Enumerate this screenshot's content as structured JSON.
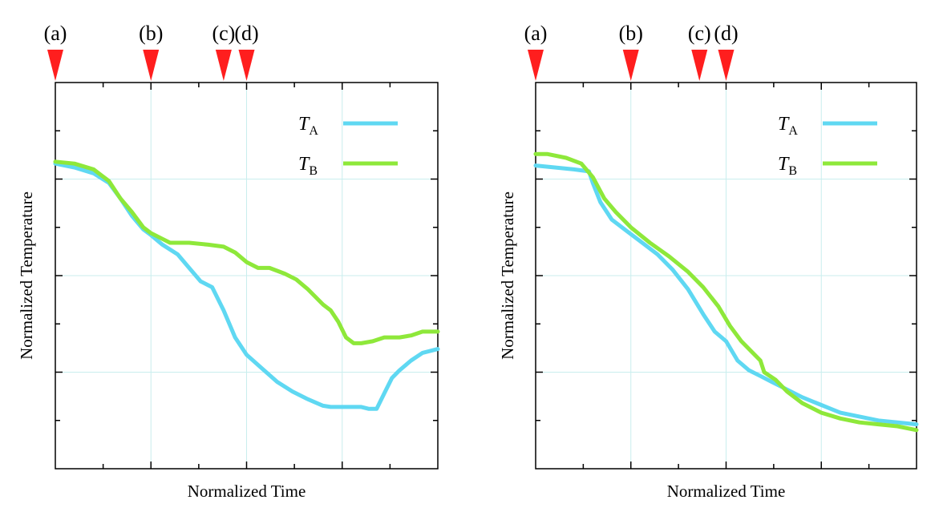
{
  "figure": {
    "panels": 2
  },
  "colors": {
    "series_A": "#5fd8f2",
    "series_B": "#8ee83a",
    "marker": "#ff1e1e",
    "grid": "#c9eeee",
    "axis": "#000000"
  },
  "chart_data": [
    {
      "type": "line",
      "title": "",
      "xlabel": "Normalized Time",
      "ylabel": "Normalized Temperature",
      "xlim": [
        0,
        1
      ],
      "ylim": [
        0,
        1
      ],
      "grid": true,
      "legend_placement": "top-right",
      "markers": [
        {
          "label": "(a)",
          "x": 0.0
        },
        {
          "label": "(b)",
          "x": 0.25
        },
        {
          "label": "(c)",
          "x": 0.44
        },
        {
          "label": "(d)",
          "x": 0.5
        }
      ],
      "series": [
        {
          "name": "T",
          "subscript": "A",
          "color": "#5fd8f2",
          "x": [
            0,
            0.05,
            0.1,
            0.14,
            0.17,
            0.2,
            0.23,
            0.25,
            0.28,
            0.32,
            0.35,
            0.38,
            0.41,
            0.44,
            0.47,
            0.5,
            0.54,
            0.58,
            0.62,
            0.66,
            0.7,
            0.72,
            0.76,
            0.8,
            0.82,
            0.84,
            0.86,
            0.88,
            0.9,
            0.93,
            0.96,
            1.0
          ],
          "y": [
            0.79,
            0.78,
            0.765,
            0.74,
            0.7,
            0.655,
            0.62,
            0.605,
            0.58,
            0.555,
            0.52,
            0.485,
            0.47,
            0.41,
            0.34,
            0.295,
            0.26,
            0.225,
            0.2,
            0.18,
            0.163,
            0.16,
            0.16,
            0.16,
            0.155,
            0.155,
            0.195,
            0.235,
            0.255,
            0.28,
            0.3,
            0.31
          ]
        },
        {
          "name": "T",
          "subscript": "B",
          "color": "#8ee83a",
          "x": [
            0,
            0.05,
            0.1,
            0.14,
            0.17,
            0.2,
            0.23,
            0.25,
            0.28,
            0.3,
            0.35,
            0.4,
            0.44,
            0.47,
            0.5,
            0.53,
            0.56,
            0.6,
            0.63,
            0.66,
            0.7,
            0.72,
            0.74,
            0.76,
            0.78,
            0.8,
            0.83,
            0.86,
            0.88,
            0.9,
            0.93,
            0.96,
            1.0
          ],
          "y": [
            0.795,
            0.79,
            0.775,
            0.745,
            0.7,
            0.665,
            0.625,
            0.61,
            0.595,
            0.585,
            0.585,
            0.58,
            0.575,
            0.56,
            0.535,
            0.52,
            0.52,
            0.505,
            0.49,
            0.465,
            0.425,
            0.41,
            0.38,
            0.34,
            0.325,
            0.325,
            0.33,
            0.34,
            0.34,
            0.34,
            0.345,
            0.355,
            0.355
          ]
        }
      ]
    },
    {
      "type": "line",
      "title": "",
      "xlabel": "Normalized Time",
      "ylabel": "Normalized Temperature",
      "xlim": [
        0,
        1
      ],
      "ylim": [
        0,
        1
      ],
      "grid": true,
      "legend_placement": "top-right",
      "markers": [
        {
          "label": "(a)",
          "x": 0.0
        },
        {
          "label": "(b)",
          "x": 0.25
        },
        {
          "label": "(c)",
          "x": 0.43
        },
        {
          "label": "(d)",
          "x": 0.5
        }
      ],
      "series": [
        {
          "name": "T",
          "subscript": "A",
          "color": "#5fd8f2",
          "x": [
            0,
            0.05,
            0.1,
            0.14,
            0.15,
            0.17,
            0.2,
            0.24,
            0.28,
            0.32,
            0.36,
            0.4,
            0.44,
            0.47,
            0.5,
            0.53,
            0.56,
            0.59,
            0.62,
            0.66,
            0.7,
            0.75,
            0.8,
            0.85,
            0.9,
            0.95,
            1.0
          ],
          "y": [
            0.785,
            0.78,
            0.775,
            0.77,
            0.74,
            0.69,
            0.645,
            0.615,
            0.585,
            0.555,
            0.515,
            0.465,
            0.4,
            0.355,
            0.33,
            0.28,
            0.255,
            0.24,
            0.225,
            0.205,
            0.185,
            0.165,
            0.145,
            0.135,
            0.125,
            0.12,
            0.115
          ]
        },
        {
          "name": "T",
          "subscript": "B",
          "color": "#8ee83a",
          "x": [
            0,
            0.03,
            0.08,
            0.12,
            0.15,
            0.18,
            0.21,
            0.25,
            0.3,
            0.35,
            0.4,
            0.44,
            0.48,
            0.51,
            0.54,
            0.57,
            0.59,
            0.6,
            0.63,
            0.66,
            0.7,
            0.75,
            0.8,
            0.85,
            0.9,
            0.95,
            1.0
          ],
          "y": [
            0.815,
            0.815,
            0.805,
            0.79,
            0.755,
            0.7,
            0.665,
            0.625,
            0.585,
            0.55,
            0.51,
            0.47,
            0.42,
            0.37,
            0.33,
            0.3,
            0.28,
            0.25,
            0.23,
            0.2,
            0.17,
            0.145,
            0.13,
            0.12,
            0.115,
            0.11,
            0.1
          ]
        }
      ]
    }
  ]
}
